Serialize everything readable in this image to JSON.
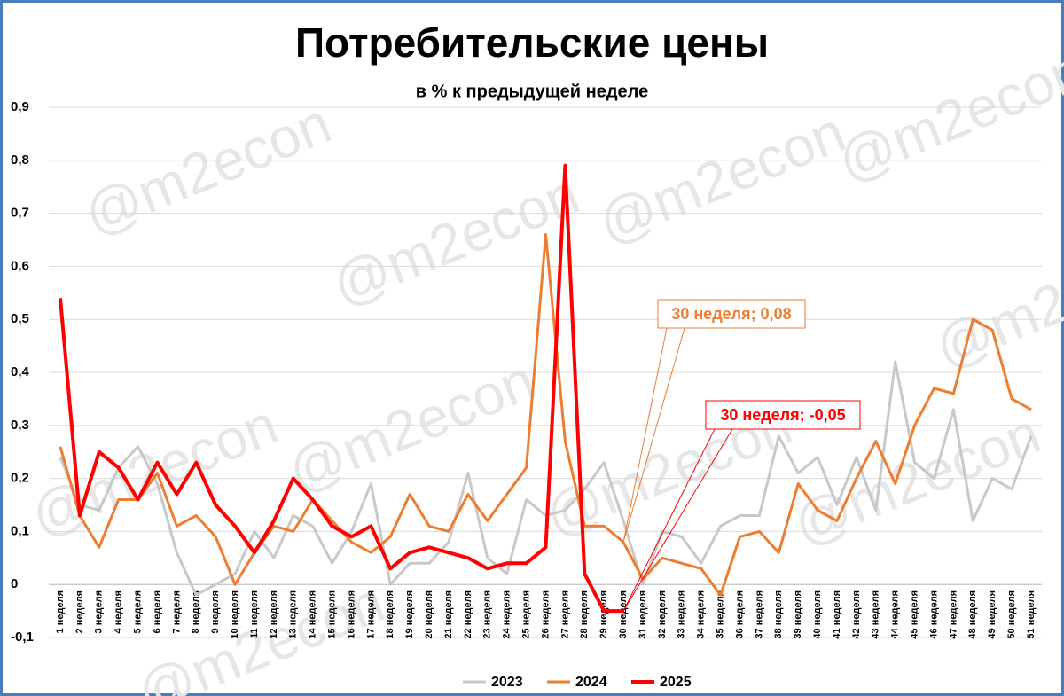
{
  "chart_data": {
    "type": "line",
    "title": "Потребительские цены",
    "subtitle": "в % к предыдущей неделе",
    "watermark": "@m2econ",
    "categories": [
      "1 неделя",
      "2 неделя",
      "3 неделя",
      "4 неделя",
      "5 неделя",
      "6 неделя",
      "7 неделя",
      "8 неделя",
      "9 неделя",
      "10 неделя",
      "11 неделя",
      "12 неделя",
      "13 неделя",
      "14 неделя",
      "15 неделя",
      "16 неделя",
      "17 неделя",
      "18 неделя",
      "19 неделя",
      "20 неделя",
      "21 неделя",
      "22 неделя",
      "23 неделя",
      "24 неделя",
      "25 неделя",
      "26 неделя",
      "27 неделя",
      "28 неделя",
      "29 неделя",
      "30 неделя",
      "31 неделя",
      "32 неделя",
      "33 неделя",
      "34 неделя",
      "35 неделя",
      "36 неделя",
      "37 неделя",
      "38 неделя",
      "39 неделя",
      "40 неделя",
      "41 неделя",
      "42 неделя",
      "43 неделя",
      "44 неделя",
      "45 неделя",
      "46 неделя",
      "47 неделя",
      "48 неделя",
      "49 неделя",
      "50 неделя",
      "51 неделя"
    ],
    "series": [
      {
        "name": "2023",
        "color": "#c8c8c8",
        "width": 3,
        "values": [
          0.24,
          0.15,
          0.14,
          0.22,
          0.26,
          0.19,
          0.06,
          -0.02,
          0.0,
          0.02,
          0.1,
          0.05,
          0.13,
          0.11,
          0.04,
          0.1,
          0.19,
          0.0,
          0.04,
          0.04,
          0.08,
          0.21,
          0.05,
          0.02,
          0.16,
          0.13,
          0.14,
          0.18,
          0.23,
          0.12,
          0.0,
          0.1,
          0.09,
          0.04,
          0.11,
          0.13,
          0.13,
          0.28,
          0.21,
          0.24,
          0.15,
          0.24,
          0.14,
          0.42,
          0.23,
          0.2,
          0.33,
          0.12,
          0.2,
          0.18,
          0.28
        ]
      },
      {
        "name": "2024",
        "color": "#ed7d31",
        "width": 3,
        "values": [
          0.26,
          0.13,
          0.07,
          0.16,
          0.16,
          0.21,
          0.11,
          0.13,
          0.09,
          0.0,
          0.06,
          0.11,
          0.1,
          0.16,
          0.12,
          0.08,
          0.06,
          0.09,
          0.17,
          0.11,
          0.1,
          0.17,
          0.12,
          0.17,
          0.22,
          0.66,
          0.27,
          0.11,
          0.11,
          0.08,
          0.01,
          0.05,
          0.04,
          0.03,
          -0.02,
          0.09,
          0.1,
          0.06,
          0.19,
          0.14,
          0.12,
          0.2,
          0.27,
          0.19,
          0.3,
          0.37,
          0.36,
          0.5,
          0.48,
          0.35,
          0.33
        ]
      },
      {
        "name": "2025",
        "color": "#ff0000",
        "width": 4,
        "values": [
          0.54,
          0.13,
          0.25,
          0.22,
          0.16,
          0.23,
          0.17,
          0.23,
          0.15,
          0.11,
          0.06,
          0.12,
          0.2,
          0.16,
          0.11,
          0.09,
          0.11,
          0.03,
          0.06,
          0.07,
          0.06,
          0.05,
          0.03,
          0.04,
          0.04,
          0.07,
          0.79,
          0.02,
          -0.05,
          -0.05,
          null,
          null,
          null,
          null,
          null,
          null,
          null,
          null,
          null,
          null,
          null,
          null,
          null,
          null,
          null,
          null,
          null,
          null,
          null,
          null,
          null
        ]
      }
    ],
    "annotations": [
      {
        "text": "30 неделя; 0,08",
        "x": "30 неделя",
        "y": 0.08,
        "color": "#ed7d31"
      },
      {
        "text": "30 неделя; -0,05",
        "x": "30 неделя",
        "y": -0.05,
        "color": "#ff0000"
      }
    ],
    "ylim": [
      -0.1,
      0.9
    ],
    "yticks": [
      {
        "value": -0.1,
        "label": "-0,1"
      },
      0,
      {
        "value": 0.1,
        "label": "0,1"
      },
      {
        "value": 0.2,
        "label": "0,2"
      },
      {
        "value": 0.3,
        "label": "0,3"
      },
      {
        "value": 0.4,
        "label": "0,4"
      },
      {
        "value": 0.5,
        "label": "0,5"
      },
      {
        "value": 0.6,
        "label": "0,6"
      },
      {
        "value": 0.7,
        "label": "0,7"
      },
      {
        "value": 0.8,
        "label": "0,8"
      },
      {
        "value": 0.9,
        "label": "0,9"
      }
    ],
    "grid": true,
    "legend": "bottom"
  }
}
